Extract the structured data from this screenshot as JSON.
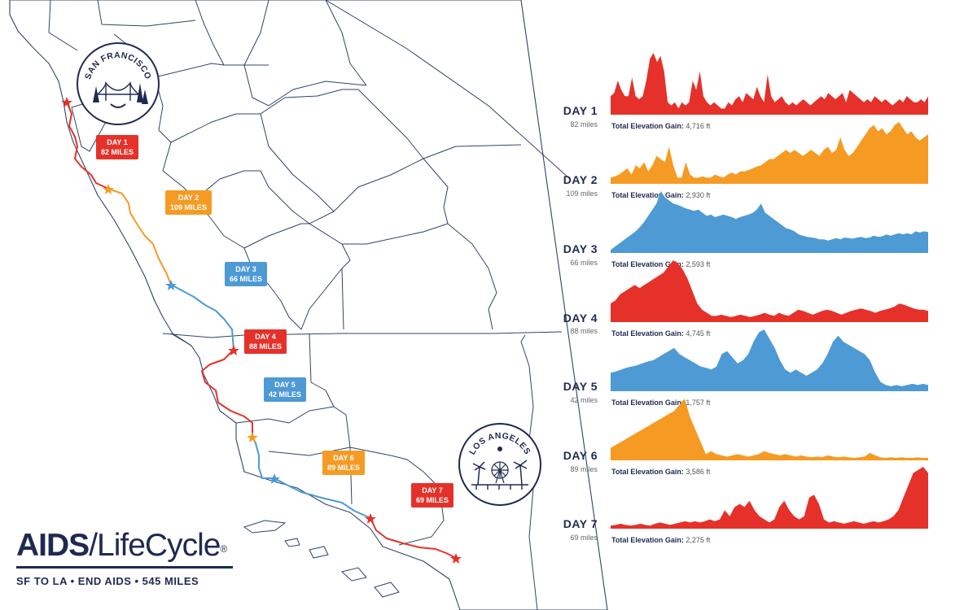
{
  "brand": {
    "name_bold": "AIDS",
    "name_slash": "/",
    "name_light": "LifeCycle",
    "registered": "®",
    "tagline": "SF TO LA • END AIDS • 545 MILES"
  },
  "seals": {
    "sf": "SAN FRANCISCO",
    "la": "LOS ANGELES"
  },
  "gain_label": "Total Elevation Gain:",
  "colors": {
    "red": "#e53129",
    "orange": "#f59b23",
    "blue": "#4d9ad4",
    "navy": "#1f2a52",
    "border": "#2f4468"
  },
  "route_labels": [
    {
      "day": "DAY 1",
      "miles": "82 MILES",
      "color": "red"
    },
    {
      "day": "DAY 2",
      "miles": "109 MILES",
      "color": "orange"
    },
    {
      "day": "DAY 3",
      "miles": "66 MILES",
      "color": "blue"
    },
    {
      "day": "DAY 4",
      "miles": "88 MILES",
      "color": "red"
    },
    {
      "day": "DAY 5",
      "miles": "42 MILES",
      "color": "blue"
    },
    {
      "day": "DAY 6",
      "miles": "89 MILES",
      "color": "orange"
    },
    {
      "day": "DAY 7",
      "miles": "69 MILES",
      "color": "red"
    }
  ],
  "days": [
    {
      "title": "DAY 1",
      "miles": "82 miles",
      "gain": "4,716 ft",
      "color": "red",
      "profile": [
        0.3,
        0.35,
        0.55,
        0.4,
        0.3,
        0.3,
        0.6,
        0.3,
        0.25,
        0.3,
        0.55,
        0.9,
        1.0,
        0.85,
        0.95,
        0.7,
        0.2,
        0.15,
        0.2,
        0.1,
        0.2,
        0.15,
        0.2,
        0.55,
        0.4,
        0.7,
        0.3,
        0.2,
        0.15,
        0.2,
        0.15,
        0.1,
        0.1,
        0.2,
        0.15,
        0.25,
        0.3,
        0.2,
        0.35,
        0.3,
        0.25,
        0.45,
        0.3,
        0.2,
        0.65,
        0.3,
        0.2,
        0.25,
        0.3,
        0.2,
        0.15,
        0.2,
        0.15,
        0.2,
        0.25,
        0.2,
        0.15,
        0.2,
        0.25,
        0.3,
        0.25,
        0.35,
        0.3,
        0.25,
        0.3,
        0.35,
        0.2,
        0.4,
        0.35,
        0.3,
        0.25,
        0.2,
        0.25,
        0.2,
        0.3,
        0.25,
        0.2,
        0.25,
        0.2,
        0.15,
        0.2,
        0.25,
        0.2,
        0.3,
        0.25,
        0.2,
        0.2,
        0.25,
        0.2,
        0.3
      ]
    },
    {
      "title": "DAY 2",
      "miles": "109 miles",
      "gain": "2,930 ft",
      "color": "orange",
      "profile": [
        0.1,
        0.12,
        0.15,
        0.2,
        0.25,
        0.15,
        0.3,
        0.25,
        0.35,
        0.2,
        0.3,
        0.45,
        0.4,
        0.35,
        0.6,
        0.3,
        0.1,
        0.1,
        0.35,
        0.15,
        0.1,
        0.1,
        0.12,
        0.1,
        0.1,
        0.15,
        0.12,
        0.1,
        0.15,
        0.18,
        0.15,
        0.2,
        0.2,
        0.22,
        0.25,
        0.28,
        0.3,
        0.35,
        0.4,
        0.4,
        0.45,
        0.5,
        0.55,
        0.5,
        0.55,
        0.5,
        0.45,
        0.5,
        0.55,
        0.5,
        0.45,
        0.55,
        0.6,
        0.5,
        0.55,
        0.75,
        0.55,
        0.45,
        0.5,
        0.6,
        0.7,
        0.8,
        0.9,
        0.95,
        0.85,
        0.9,
        0.8,
        0.85,
        0.95,
        1.0,
        0.9,
        0.8,
        0.85,
        0.75,
        0.7,
        0.75,
        0.8
      ]
    },
    {
      "title": "DAY 3",
      "miles": "66 miles",
      "gain": "2,593 ft",
      "color": "blue",
      "profile": [
        0.05,
        0.1,
        0.15,
        0.2,
        0.25,
        0.3,
        0.35,
        0.42,
        0.5,
        0.6,
        0.7,
        0.8,
        1.0,
        0.9,
        0.85,
        0.8,
        0.78,
        0.75,
        0.72,
        0.7,
        0.68,
        0.7,
        0.65,
        0.6,
        0.62,
        0.58,
        0.6,
        0.62,
        0.6,
        0.58,
        0.55,
        0.58,
        0.6,
        0.62,
        0.65,
        0.7,
        0.8,
        0.65,
        0.6,
        0.55,
        0.5,
        0.45,
        0.4,
        0.38,
        0.35,
        0.3,
        0.28,
        0.26,
        0.25,
        0.24,
        0.22,
        0.22,
        0.2,
        0.22,
        0.24,
        0.22,
        0.25,
        0.24,
        0.23,
        0.25,
        0.26,
        0.24,
        0.25,
        0.28,
        0.26,
        0.27,
        0.3,
        0.28,
        0.3,
        0.32,
        0.3,
        0.32,
        0.3,
        0.35,
        0.33,
        0.35,
        0.34
      ]
    },
    {
      "title": "DAY 4",
      "miles": "88 miles",
      "gain": "4,745 ft",
      "color": "red",
      "profile": [
        0.3,
        0.35,
        0.45,
        0.5,
        0.55,
        0.6,
        0.55,
        0.6,
        0.65,
        0.7,
        0.75,
        0.8,
        0.9,
        1.0,
        0.95,
        0.85,
        0.7,
        0.5,
        0.3,
        0.2,
        0.15,
        0.1,
        0.1,
        0.12,
        0.1,
        0.08,
        0.1,
        0.12,
        0.1,
        0.08,
        0.1,
        0.12,
        0.15,
        0.12,
        0.1,
        0.15,
        0.12,
        0.1,
        0.15,
        0.2,
        0.18,
        0.15,
        0.12,
        0.15,
        0.18,
        0.2,
        0.18,
        0.15,
        0.12,
        0.15,
        0.18,
        0.2,
        0.22,
        0.2,
        0.18,
        0.15,
        0.18,
        0.2,
        0.22,
        0.25,
        0.3,
        0.28,
        0.25,
        0.22,
        0.2,
        0.2,
        0.18
      ]
    },
    {
      "title": "DAY 5",
      "miles": "42 miles",
      "gain": "1,757 ft",
      "color": "blue",
      "profile": [
        0.3,
        0.32,
        0.35,
        0.38,
        0.4,
        0.42,
        0.45,
        0.48,
        0.5,
        0.55,
        0.6,
        0.65,
        0.7,
        0.6,
        0.55,
        0.5,
        0.45,
        0.4,
        0.38,
        0.35,
        0.4,
        0.6,
        0.65,
        0.55,
        0.45,
        0.5,
        0.6,
        0.8,
        0.95,
        1.0,
        0.85,
        0.7,
        0.5,
        0.35,
        0.3,
        0.35,
        0.3,
        0.25,
        0.3,
        0.35,
        0.45,
        0.6,
        0.8,
        0.9,
        0.8,
        0.75,
        0.7,
        0.65,
        0.6,
        0.5,
        0.3,
        0.15,
        0.1,
        0.08,
        0.1,
        0.08,
        0.1,
        0.12,
        0.1,
        0.12,
        0.1
      ]
    },
    {
      "title": "DAY 6",
      "miles": "89 miles",
      "gain": "3,586 ft",
      "color": "orange",
      "profile": [
        0.2,
        0.25,
        0.3,
        0.35,
        0.4,
        0.45,
        0.5,
        0.55,
        0.6,
        0.65,
        0.7,
        0.75,
        0.8,
        0.9,
        1.0,
        0.7,
        0.5,
        0.3,
        0.1,
        0.15,
        0.1,
        0.08,
        0.06,
        0.08,
        0.1,
        0.08,
        0.06,
        0.08,
        0.1,
        0.15,
        0.12,
        0.1,
        0.08,
        0.1,
        0.08,
        0.06,
        0.08,
        0.06,
        0.05,
        0.06,
        0.05,
        0.08,
        0.06,
        0.05,
        0.06,
        0.05,
        0.04,
        0.05,
        0.06,
        0.12,
        0.08,
        0.05,
        0.04,
        0.05,
        0.04,
        0.05,
        0.04,
        0.04,
        0.05,
        0.04,
        0.04
      ]
    },
    {
      "title": "DAY 7",
      "miles": "69 miles",
      "gain": "2,275 ft",
      "color": "red",
      "profile": [
        0.05,
        0.06,
        0.08,
        0.06,
        0.05,
        0.06,
        0.08,
        0.06,
        0.05,
        0.08,
        0.1,
        0.08,
        0.06,
        0.08,
        0.1,
        0.12,
        0.1,
        0.12,
        0.1,
        0.12,
        0.15,
        0.12,
        0.15,
        0.3,
        0.2,
        0.35,
        0.4,
        0.35,
        0.45,
        0.3,
        0.2,
        0.15,
        0.1,
        0.15,
        0.35,
        0.45,
        0.3,
        0.2,
        0.15,
        0.2,
        0.5,
        0.55,
        0.4,
        0.15,
        0.1,
        0.12,
        0.1,
        0.08,
        0.1,
        0.12,
        0.1,
        0.08,
        0.1,
        0.12,
        0.1,
        0.12,
        0.15,
        0.2,
        0.3,
        0.5,
        0.7,
        0.9,
        0.95,
        1.0,
        0.9
      ]
    }
  ]
}
